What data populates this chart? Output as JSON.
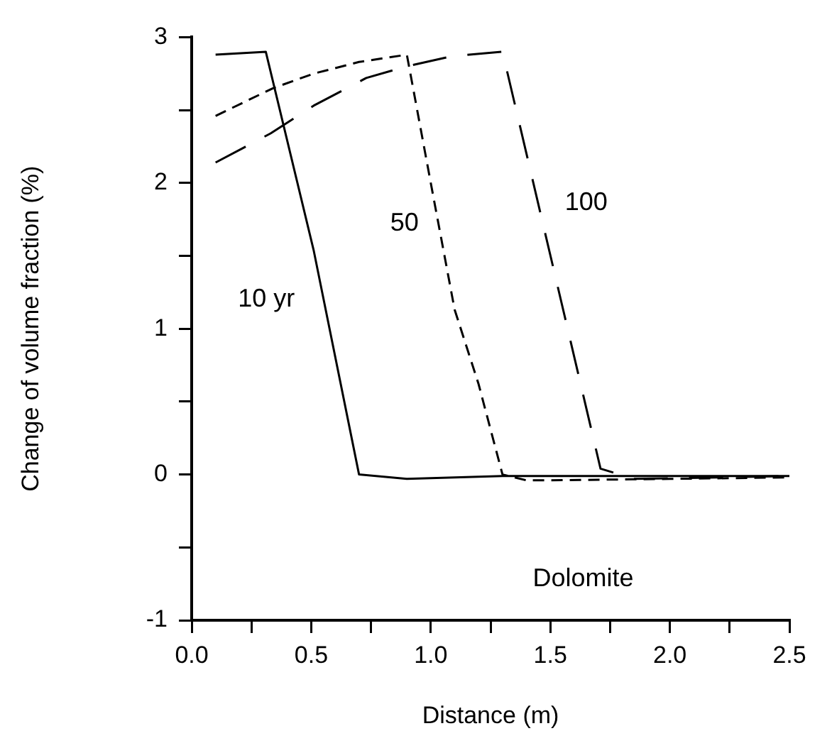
{
  "chart_data": {
    "type": "line",
    "xlabel": "Distance (m)",
    "ylabel": "Change of volume fraction (%)",
    "xlim": [
      0,
      2.5
    ],
    "ylim": [
      -1,
      3
    ],
    "xticks": [
      {
        "value": 0,
        "label": "0.0"
      },
      {
        "value": 0.25,
        "label": null
      },
      {
        "value": 0.5,
        "label": "0.5"
      },
      {
        "value": 0.75,
        "label": null
      },
      {
        "value": 1,
        "label": "1.0"
      },
      {
        "value": 1.25,
        "label": null
      },
      {
        "value": 1.5,
        "label": "1.5"
      },
      {
        "value": 1.75,
        "label": null
      },
      {
        "value": 2,
        "label": "2.0"
      },
      {
        "value": 2.25,
        "label": null
      },
      {
        "value": 2.5,
        "label": "2.5"
      }
    ],
    "yticks": [
      -1,
      {
        "value": -0.5,
        "label": null
      },
      0,
      {
        "value": 0.5,
        "label": null
      },
      1,
      {
        "value": 1.5,
        "label": null
      },
      2,
      {
        "value": 2.5,
        "label": null
      },
      3
    ],
    "grid": false,
    "legend": false,
    "marker": "none",
    "series": [
      {
        "color": "#000000",
        "line_style": "solid",
        "x": [
          0.1,
          0.31,
          0.51,
          0.7,
          0.9,
          1.3,
          1.8,
          2.5
        ],
        "values": [
          2.88,
          2.9,
          1.54,
          0,
          -0.03,
          -0.01,
          -0.01,
          -0.01
        ]
      },
      {
        "color": "#000000",
        "line_style": "dashed",
        "x": [
          0.1,
          0.34,
          0.51,
          0.7,
          0.9,
          1.0,
          1.1,
          1.2,
          1.3,
          1.4,
          1.5,
          2.0,
          2.5
        ],
        "values": [
          2.46,
          2.65,
          2.75,
          2.83,
          2.88,
          2.0,
          1.13,
          0.62,
          0,
          -0.04,
          -0.04,
          -0.03,
          -0.02
        ]
      },
      {
        "color": "#000000",
        "line_style": "dashed",
        "x": [
          0.1,
          0.33,
          0.51,
          0.73,
          0.9,
          1.09,
          1.3,
          1.71,
          1.85,
          2.2,
          2.5
        ],
        "values": [
          2.14,
          2.34,
          2.53,
          2.72,
          2.8,
          2.87,
          2.9,
          0.04,
          -0.03,
          -0.02,
          -0.01
        ]
      }
    ],
    "annotations": [
      "10 yr",
      "50",
      "100",
      "Dolomite"
    ]
  }
}
